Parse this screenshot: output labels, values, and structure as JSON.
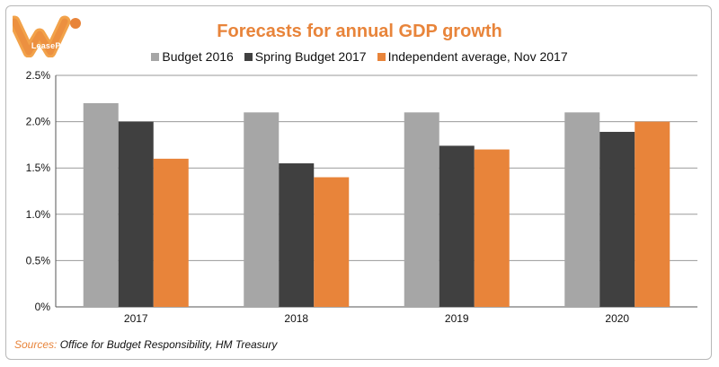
{
  "logo": {
    "text": "LeasePlan"
  },
  "colors": {
    "accent": "#e8843a",
    "series": [
      "#a6a6a6",
      "#404040",
      "#e8843a"
    ]
  },
  "chart_data": {
    "type": "bar",
    "title": "Forecasts for annual GDP growth",
    "categories": [
      "2017",
      "2018",
      "2019",
      "2020"
    ],
    "series": [
      {
        "name": "Budget 2016",
        "values": [
          2.2,
          2.1,
          2.1,
          2.1
        ]
      },
      {
        "name": "Spring Budget 2017",
        "values": [
          2.0,
          1.55,
          1.74,
          1.89
        ]
      },
      {
        "name": "Independent average, Nov 2017",
        "values": [
          1.6,
          1.4,
          1.7,
          2.0
        ]
      }
    ],
    "yticks": [
      "0%",
      "0.5%",
      "1.0%",
      "1.5%",
      "2.0%",
      "2.5%"
    ],
    "ylim": [
      0,
      2.5
    ],
    "grid": true,
    "legend": "top-center"
  },
  "sources": {
    "label": "Sources:",
    "text": "Office for Budget Responsibility, HM Treasury"
  }
}
